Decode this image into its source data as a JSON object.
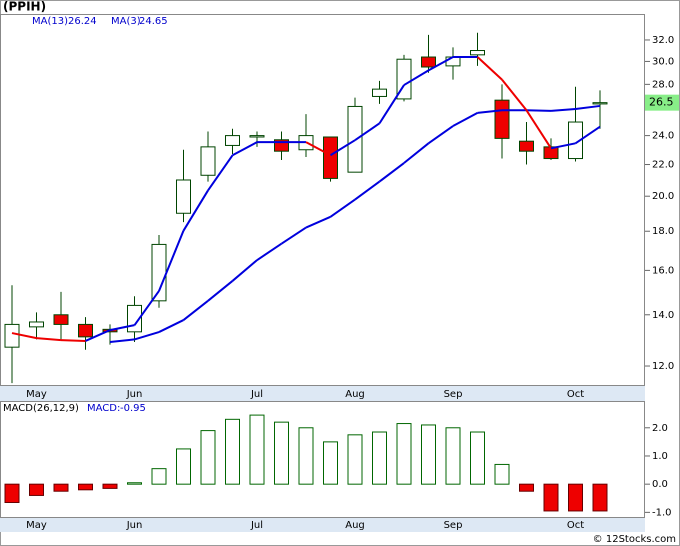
{
  "chart_data": [
    {
      "type": "candlestick",
      "title": "(PPIH)",
      "log_scale": true,
      "categories": [
        null,
        "May",
        null,
        null,
        null,
        "Jun",
        null,
        null,
        null,
        null,
        "Jul",
        null,
        null,
        null,
        "Aug",
        null,
        null,
        null,
        "Sep",
        null,
        null,
        null,
        null,
        "Oct",
        null
      ],
      "open": [
        12.7,
        13.5,
        14.0,
        13.6,
        13.4,
        13.3,
        14.6,
        19.0,
        21.3,
        23.3,
        23.9,
        23.7,
        23.0,
        23.9,
        21.5,
        27.0,
        26.8,
        30.4,
        29.6,
        30.6,
        26.7,
        23.6,
        23.2,
        22.4,
        26.4
      ],
      "high": [
        15.3,
        14.1,
        15.0,
        13.9,
        13.6,
        14.8,
        17.8,
        23.0,
        24.3,
        24.5,
        24.3,
        24.3,
        25.6,
        23.9,
        26.9,
        28.3,
        30.6,
        32.5,
        31.3,
        32.7,
        28.0,
        25.0,
        23.8,
        27.8,
        27.5
      ],
      "low": [
        11.4,
        13.0,
        13.0,
        12.6,
        12.8,
        12.9,
        14.3,
        18.5,
        20.9,
        22.7,
        23.2,
        22.3,
        22.5,
        20.9,
        21.5,
        26.4,
        26.6,
        29.0,
        28.4,
        29.6,
        22.4,
        22.0,
        22.3,
        22.2,
        24.5
      ],
      "close": [
        13.6,
        13.7,
        13.6,
        13.1,
        13.3,
        14.4,
        17.3,
        21.0,
        23.2,
        24.0,
        24.0,
        22.9,
        24.0,
        21.1,
        26.2,
        27.6,
        30.2,
        29.5,
        30.4,
        31.0,
        23.8,
        22.9,
        22.4,
        25.0,
        26.5
      ],
      "up_color": "#ffffff",
      "down_color": "#ee0000",
      "edge_color": "#004400",
      "last_price": 26.5,
      "series": [
        {
          "name": "MA(13)",
          "legend_value": 26.24,
          "color": "#0000dd",
          "values": [
            null,
            null,
            null,
            null,
            12.9,
            13.0,
            13.29,
            13.78,
            14.6,
            15.5,
            16.5,
            17.34,
            18.2,
            18.8,
            19.8,
            20.9,
            22.1,
            23.45,
            24.7,
            25.7,
            25.9,
            25.9,
            25.85,
            26.0,
            26.24
          ]
        },
        {
          "name": "MA(3)",
          "legend_value": 24.65,
          "color": "#0000dd",
          "down_color": "#ee0000",
          "values": [
            13.25,
            13.05,
            12.97,
            12.94,
            13.37,
            13.57,
            15.04,
            18.03,
            20.35,
            22.62,
            23.53,
            23.53,
            23.53,
            22.62,
            23.67,
            24.9,
            27.94,
            29.2,
            30.4,
            30.4,
            28.4,
            25.9,
            23.1,
            23.45,
            24.65
          ]
        }
      ],
      "ylim": [
        11.3,
        34.6
      ],
      "yticks": [
        {
          "value": 12,
          "label": "12.0"
        },
        {
          "value": 14,
          "label": "14.0"
        },
        {
          "value": 16,
          "label": "16.0"
        },
        {
          "value": 18,
          "label": "18.0"
        },
        {
          "value": 20,
          "label": "20.0"
        },
        {
          "value": 22,
          "label": "22.0"
        },
        {
          "value": 24,
          "label": "24.0"
        },
        {
          "value": 28,
          "label": "28.0"
        },
        {
          "value": 30,
          "label": "30.0"
        },
        {
          "value": 32,
          "label": "32.0"
        }
      ]
    },
    {
      "type": "bar",
      "title": "MACD(26,12,9)",
      "value_name": "MACD:",
      "last_value": -0.95,
      "values": [
        -0.65,
        -0.4,
        -0.25,
        -0.2,
        -0.15,
        0.05,
        0.55,
        1.25,
        1.9,
        2.3,
        2.45,
        2.2,
        2.0,
        1.5,
        1.75,
        1.85,
        2.15,
        2.1,
        2.0,
        1.85,
        0.7,
        -0.25,
        -0.95,
        -0.95,
        -0.95
      ],
      "color": "#ffffff",
      "edge_color": "#006600",
      "negative_color": "#ee0000",
      "ylim": [
        -1.2,
        2.95
      ],
      "yticks": [
        {
          "value": -1,
          "label": "-1.0"
        },
        {
          "value": 0,
          "label": "0.0"
        },
        {
          "value": 1,
          "label": "1.0"
        },
        {
          "value": 2,
          "label": "2.0"
        }
      ]
    },
    {
      "credit": "© 12Stocks.com"
    }
  ]
}
